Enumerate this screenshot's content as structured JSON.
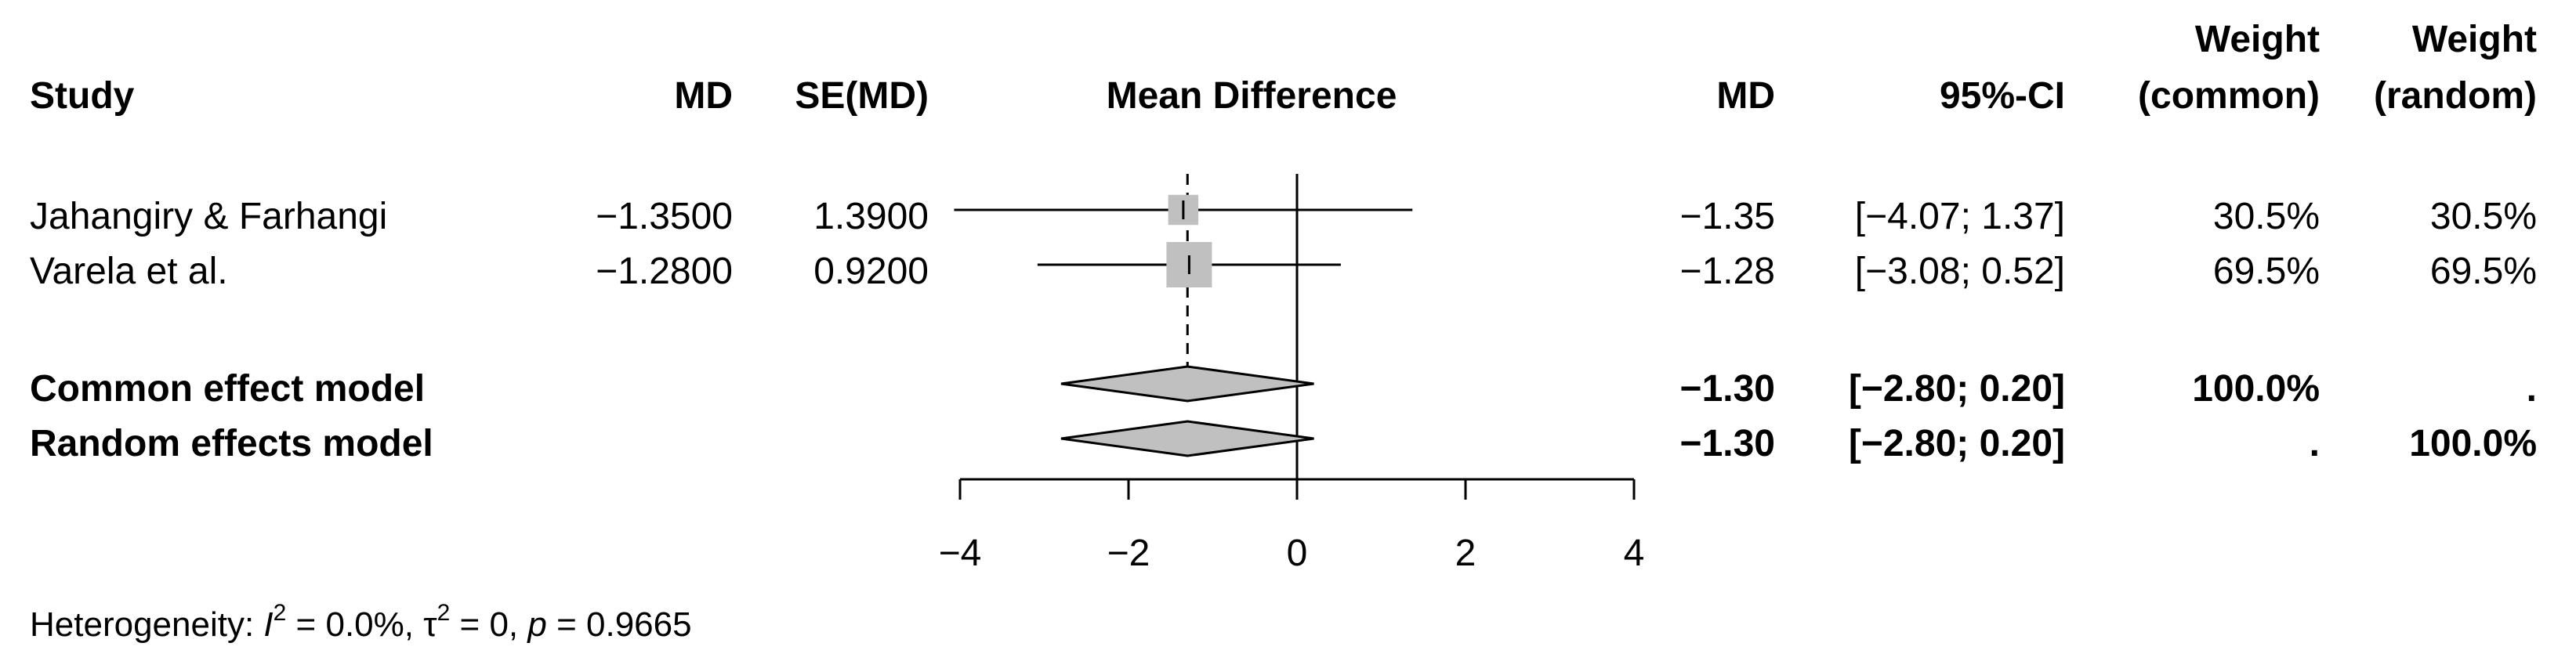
{
  "chart_data": {
    "type": "forest",
    "columns": {
      "study": "Study",
      "md": "MD",
      "se": "SE(MD)",
      "plot": "Mean Difference",
      "md2": "MD",
      "ci": "95%-CI",
      "weight": "Weight",
      "common": "(common)",
      "random": "(random)"
    },
    "studies": [
      {
        "name": "Jahangiry & Farhangi",
        "md_text": "−1.3500",
        "se_text": "1.3900",
        "md": -1.35,
        "lower": -4.07,
        "upper": 1.37,
        "md_disp": "−1.35",
        "ci_text": "[−4.07; 1.37]",
        "w_common": "30.5%",
        "w_random": "30.5%",
        "weight": 30.5
      },
      {
        "name": "Varela et al.",
        "md_text": "−1.2800",
        "se_text": "0.9200",
        "md": -1.28,
        "lower": -3.08,
        "upper": 0.52,
        "md_disp": "−1.28",
        "ci_text": "[−3.08; 0.52]",
        "w_common": "69.5%",
        "w_random": "69.5%",
        "weight": 69.5
      }
    ],
    "models": [
      {
        "name": "Common effect model",
        "md": -1.3,
        "lower": -2.8,
        "upper": 0.2,
        "md_disp": "−1.30",
        "ci_text": "[−2.80; 0.20]",
        "w_common": "100.0%",
        "w_random": "."
      },
      {
        "name": "Random effects model",
        "md": -1.3,
        "lower": -2.8,
        "upper": 0.2,
        "md_disp": "−1.30",
        "ci_text": "[−2.80; 0.20]",
        "w_common": ".",
        "w_random": "100.0%"
      }
    ],
    "xlim": [
      -4,
      4
    ],
    "ticks": [
      -4,
      -2,
      0,
      2,
      4
    ],
    "tick_labels": [
      "−4",
      "−2",
      "0",
      "2",
      "4"
    ],
    "heterogeneity": {
      "prefix": "Heterogeneity: ",
      "i2_symbol": "I",
      "i2_value": " = 0.0%, ",
      "tau_symbol": "τ",
      "tau_value": " = 0, ",
      "p_symbol": "p",
      "p_value": " = 0.9665",
      "exponent": "2"
    },
    "colors": {
      "box": "#c0c0c0",
      "diamond": "#c0c0c0",
      "line": "#000000"
    }
  }
}
